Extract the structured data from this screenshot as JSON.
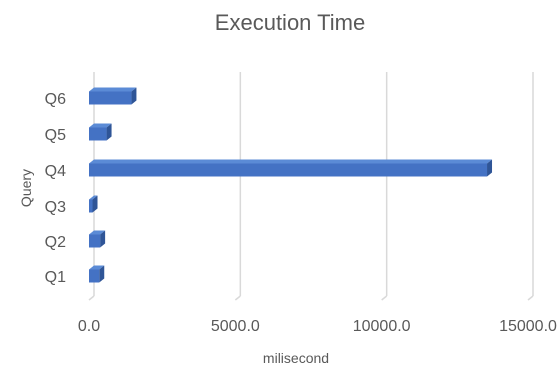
{
  "chart_data": {
    "type": "bar",
    "orientation": "horizontal",
    "style": "3d",
    "title": "Execution Time",
    "xlabel": "milisecond",
    "ylabel": "Query",
    "categories": [
      "Q1",
      "Q2",
      "Q3",
      "Q4",
      "Q5",
      "Q6"
    ],
    "values": [
      350,
      380,
      120,
      13600,
      600,
      1450
    ],
    "xlim": [
      0,
      15000
    ],
    "xticks": [
      0,
      5000,
      10000,
      15000
    ],
    "xtick_labels": [
      "0.0",
      "5000.0",
      "10000.0",
      "15000.0"
    ],
    "grid": true,
    "legend": "none",
    "colors": {
      "bar_front": "#4472C4",
      "bar_top": "#5B8BD6",
      "bar_side": "#2F5597",
      "grid": "#D9D9D9",
      "text": "#595959"
    }
  }
}
